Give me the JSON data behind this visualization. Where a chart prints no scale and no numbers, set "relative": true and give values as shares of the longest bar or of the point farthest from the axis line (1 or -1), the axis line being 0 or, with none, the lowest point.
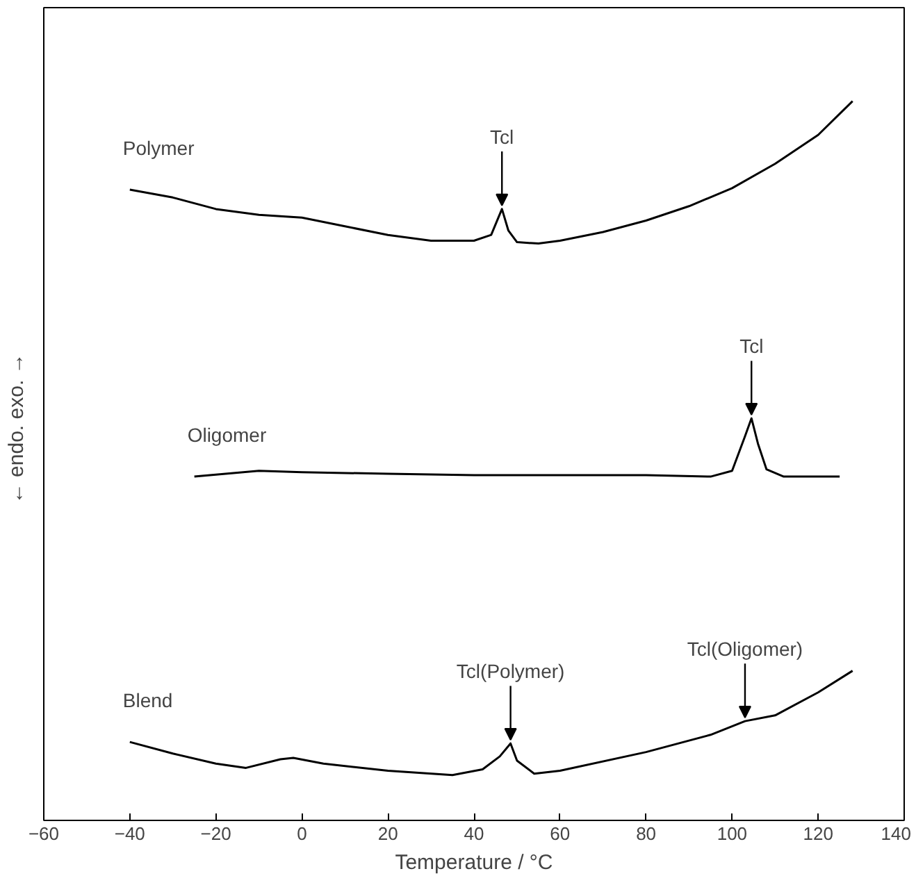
{
  "chart_data": {
    "type": "line",
    "relative": true,
    "xlabel": "Temperature / °C",
    "ylabel": "← endo.      exo. →",
    "xlim": [
      -60,
      140
    ],
    "xticks": [
      -60,
      -40,
      -20,
      0,
      20,
      40,
      60,
      80,
      100,
      120,
      140
    ],
    "grid": false,
    "marker": "none",
    "line_style": "solid",
    "series": [
      {
        "name": "Polymer",
        "color": "#000000",
        "x": [
          -40,
          -30,
          -20,
          -10,
          0,
          10,
          20,
          30,
          40,
          44,
          46.5,
          48,
          50,
          55,
          60,
          70,
          80,
          90,
          100,
          110,
          120,
          128
        ],
        "values": [
          0.877,
          0.866,
          0.85,
          0.842,
          0.838,
          0.826,
          0.814,
          0.806,
          0.806,
          0.814,
          0.85,
          0.82,
          0.804,
          0.802,
          0.806,
          0.818,
          0.834,
          0.854,
          0.879,
          0.913,
          0.953,
          1.0
        ]
      },
      {
        "name": "Oligomer",
        "color": "#000000",
        "x": [
          -25,
          -10,
          0,
          20,
          40,
          60,
          80,
          95,
          100,
          103,
          104.5,
          106,
          108,
          112,
          125
        ],
        "values": [
          0.478,
          0.486,
          0.484,
          0.482,
          0.48,
          0.48,
          0.48,
          0.478,
          0.486,
          0.534,
          0.559,
          0.524,
          0.488,
          0.478,
          0.478
        ]
      },
      {
        "name": "Blend",
        "color": "#000000",
        "x": [
          -40,
          -30,
          -20,
          -13,
          -5,
          -2,
          5,
          20,
          35,
          42,
          46,
          48.5,
          50,
          54,
          60,
          80,
          95,
          103,
          110,
          120,
          128
        ],
        "values": [
          0.109,
          0.093,
          0.079,
          0.073,
          0.085,
          0.087,
          0.079,
          0.069,
          0.063,
          0.071,
          0.089,
          0.107,
          0.083,
          0.065,
          0.069,
          0.095,
          0.119,
          0.138,
          0.146,
          0.178,
          0.208
        ]
      }
    ],
    "annotations": [
      {
        "text": "Tcl",
        "x": 46.5,
        "y": 0.85
      },
      {
        "text": "Tcl",
        "x": 104.5,
        "y": 0.559
      },
      {
        "text": "Tcl(Polymer)",
        "x": 48.5,
        "y": 0.107
      },
      {
        "text": "Tcl(Oligomer)",
        "x": 103,
        "y": 0.138
      }
    ]
  }
}
